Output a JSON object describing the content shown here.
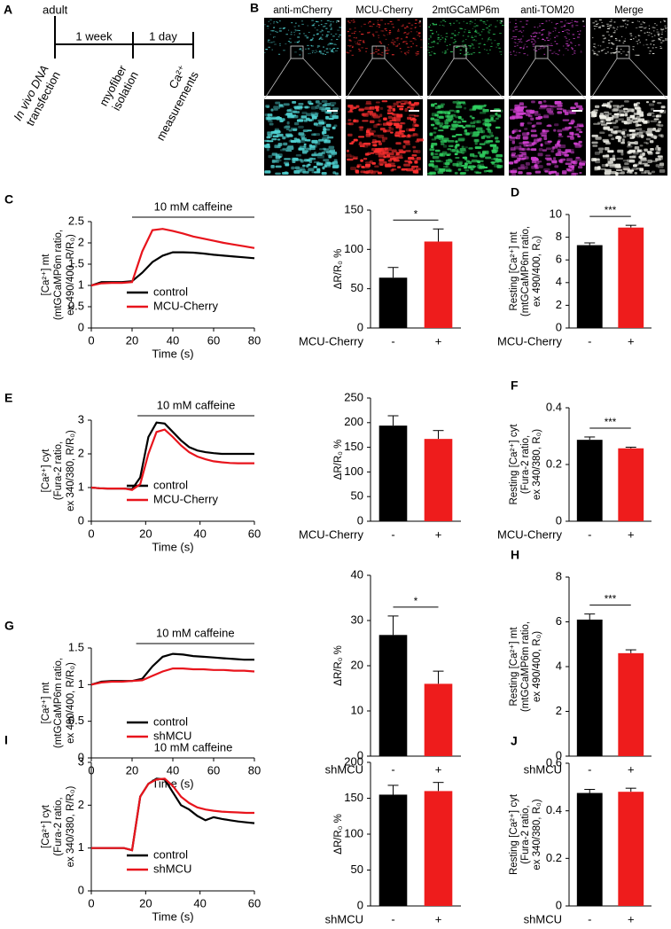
{
  "timeline": {
    "label": "A",
    "top_label": "adult",
    "segments": [
      "1 week",
      "1 day"
    ],
    "events": [
      [
        "In vivo DNA",
        "transfection"
      ],
      [
        "myofiber",
        "isolation"
      ],
      [
        "Ca²⁺",
        "measurements"
      ]
    ]
  },
  "images": {
    "label": "B",
    "channels": [
      "anti-mCherry",
      "MCU-Cherry",
      "2mtGCaMP6m",
      "anti-TOM20",
      "Merge"
    ],
    "colors": [
      "#4fd0d0",
      "#ff3030",
      "#30d060",
      "#d040d0",
      "#f0f0e8"
    ]
  },
  "chart_data": [
    {
      "type": "line",
      "label": "C",
      "annotation": {
        "text": "10 mM caffeine",
        "x": [
          20,
          80
        ]
      },
      "ylabel": [
        "[Ca²⁺] mt",
        "(mtGCaMP6m ratio,",
        "ex 490/400, R/R₀)"
      ],
      "xlabel": "Time (s)",
      "x": [
        0,
        5,
        10,
        15,
        20,
        25,
        30,
        35,
        40,
        45,
        50,
        55,
        60,
        65,
        70,
        75,
        80
      ],
      "series": [
        {
          "name": "control",
          "color": "#000000",
          "values": [
            1.0,
            1.08,
            1.08,
            1.08,
            1.1,
            1.3,
            1.55,
            1.7,
            1.78,
            1.78,
            1.77,
            1.75,
            1.72,
            1.7,
            1.68,
            1.66,
            1.64
          ]
        },
        {
          "name": "MCU-Cherry",
          "color": "#e8141c",
          "values": [
            1.0,
            1.05,
            1.06,
            1.06,
            1.08,
            1.8,
            2.3,
            2.33,
            2.28,
            2.22,
            2.15,
            2.1,
            2.05,
            2.0,
            1.96,
            1.92,
            1.88
          ]
        }
      ],
      "xlim": [
        0,
        80
      ],
      "xticks": [
        0,
        20,
        40,
        60,
        80
      ],
      "ylim": [
        0,
        2.5
      ],
      "yticks": [
        0,
        0.5,
        1,
        1.5,
        2,
        2.5
      ]
    },
    {
      "type": "bar",
      "ylabel": [
        "ΔR/R₀ %"
      ],
      "xlabel": "MCU-Cherry",
      "categories": [
        "-",
        "+"
      ],
      "values": [
        64,
        110
      ],
      "errors": [
        13,
        16
      ],
      "colors": [
        "#000000",
        "#ee1c1c"
      ],
      "significance": "*",
      "ylim": [
        0,
        150
      ],
      "yticks": [
        0,
        50,
        100,
        150
      ]
    },
    {
      "type": "bar",
      "label": "D",
      "ylabel": [
        "Resting [Ca²⁺] mt",
        "(mtGCaMP6m ratio,",
        "ex 490/400, R₀)"
      ],
      "xlabel": "MCU-Cherry",
      "categories": [
        "-",
        "+"
      ],
      "values": [
        7.3,
        8.85
      ],
      "errors": [
        0.2,
        0.2
      ],
      "colors": [
        "#000000",
        "#ee1c1c"
      ],
      "significance": "***",
      "ylim": [
        0,
        10
      ],
      "yticks": [
        0,
        2,
        4,
        6,
        8,
        10
      ]
    },
    {
      "type": "line",
      "label": "E",
      "annotation": {
        "text": "10 mM caffeine",
        "x": [
          17,
          60
        ]
      },
      "ylabel": [
        "[Ca²⁺] cyt",
        "(Fura-2 ratio,",
        "ex 340/380, R/R₀)"
      ],
      "xlabel": "Time (s)",
      "x": [
        0,
        3,
        6,
        9,
        12,
        15,
        18,
        21,
        24,
        27,
        30,
        33,
        36,
        39,
        42,
        45,
        48,
        51,
        54,
        57,
        60
      ],
      "series": [
        {
          "name": "control",
          "color": "#000000",
          "values": [
            1,
            0.98,
            0.97,
            0.97,
            0.97,
            0.95,
            1.3,
            2.5,
            2.93,
            2.9,
            2.65,
            2.4,
            2.2,
            2.1,
            2.05,
            2.02,
            2.0,
            2.0,
            2.0,
            2.0,
            2.0
          ]
        },
        {
          "name": "MCU-Cherry",
          "color": "#e8141c",
          "values": [
            1,
            0.98,
            0.97,
            0.97,
            0.97,
            0.93,
            1.1,
            2.0,
            2.65,
            2.72,
            2.5,
            2.25,
            2.05,
            1.92,
            1.84,
            1.78,
            1.75,
            1.73,
            1.72,
            1.72,
            1.72
          ]
        }
      ],
      "xlim": [
        0,
        60
      ],
      "xticks": [
        0,
        20,
        40,
        60
      ],
      "ylim": [
        0,
        3
      ],
      "yticks": [
        0,
        1,
        2,
        3
      ]
    },
    {
      "type": "bar",
      "ylabel": [
        "ΔR/R₀ %"
      ],
      "xlabel": "MCU-Cherry",
      "categories": [
        "-",
        "+"
      ],
      "values": [
        194,
        167
      ],
      "errors": [
        20,
        17
      ],
      "colors": [
        "#000000",
        "#ee1c1c"
      ],
      "ylim": [
        0,
        250
      ],
      "yticks": [
        0,
        50,
        100,
        150,
        200,
        250
      ]
    },
    {
      "type": "bar",
      "label": "F",
      "ylabel": [
        "Resting  [Ca²⁺] cyt",
        "(Fura-2 ratio,",
        "ex 340/380, R₀)"
      ],
      "xlabel": "MCU-Cherry",
      "categories": [
        "-",
        "+"
      ],
      "values": [
        0.287,
        0.257
      ],
      "errors": [
        0.01,
        0.004
      ],
      "colors": [
        "#000000",
        "#ee1c1c"
      ],
      "significance": "***",
      "ylim": [
        0,
        0.4
      ],
      "yticks": [
        0,
        0.2,
        0.4
      ]
    },
    {
      "type": "line",
      "label": "G",
      "annotation": {
        "text": "10 mM caffeine",
        "x": [
          22,
          80
        ]
      },
      "ylabel": [
        "[Ca²⁺] mt",
        "(mtGCaMP6m ratio,",
        "ex 490/400, R/R₀)"
      ],
      "xlabel": "Time (s)",
      "x": [
        0,
        5,
        10,
        15,
        20,
        25,
        30,
        35,
        40,
        45,
        50,
        55,
        60,
        65,
        70,
        75,
        80
      ],
      "series": [
        {
          "name": "control",
          "color": "#000000",
          "values": [
            1.0,
            1.04,
            1.05,
            1.05,
            1.05,
            1.08,
            1.25,
            1.38,
            1.42,
            1.41,
            1.39,
            1.38,
            1.37,
            1.36,
            1.35,
            1.34,
            1.34
          ]
        },
        {
          "name": "shMCU",
          "color": "#e8141c",
          "values": [
            1.0,
            1.03,
            1.04,
            1.04,
            1.05,
            1.06,
            1.12,
            1.18,
            1.22,
            1.22,
            1.21,
            1.21,
            1.2,
            1.2,
            1.19,
            1.19,
            1.18
          ]
        }
      ],
      "xlim": [
        0,
        80
      ],
      "xticks": [
        0,
        20,
        40,
        60,
        80
      ],
      "ylim": [
        0,
        1.5
      ],
      "yticks": [
        0,
        0.5,
        1,
        1.5
      ]
    },
    {
      "type": "bar",
      "ylabel": [
        "ΔR/R₀ %"
      ],
      "xlabel": "shMCU",
      "categories": [
        "-",
        "+"
      ],
      "values": [
        26.8,
        16
      ],
      "errors": [
        4.2,
        2.8
      ],
      "colors": [
        "#000000",
        "#ee1c1c"
      ],
      "significance": "*",
      "ylim": [
        0,
        40
      ],
      "yticks": [
        0,
        10,
        20,
        30,
        40
      ]
    },
    {
      "type": "bar",
      "label": "H",
      "ylabel": [
        "Resting [Ca²⁺] mt",
        "(mtGCaMP6m ratio,",
        "ex 490/400, R₀)"
      ],
      "xlabel": "shMCU",
      "categories": [
        "-",
        "+"
      ],
      "values": [
        6.1,
        4.6
      ],
      "errors": [
        0.25,
        0.15
      ],
      "colors": [
        "#000000",
        "#ee1c1c"
      ],
      "significance": "***",
      "ylim": [
        0,
        8
      ],
      "yticks": [
        0,
        2,
        4,
        6,
        8
      ]
    },
    {
      "type": "line",
      "label": "I",
      "annotation": {
        "text": "10 mM caffeine",
        "x": [
          15,
          60
        ]
      },
      "ylabel": [
        "[Ca²⁺] cyt",
        "(Fura-2 ratio,",
        "ex 340/380, R/R₀)"
      ],
      "xlabel": "Time (s)",
      "x": [
        0,
        3,
        6,
        9,
        12,
        15,
        18,
        21,
        24,
        27,
        30,
        33,
        36,
        39,
        42,
        45,
        48,
        51,
        54,
        57,
        60
      ],
      "series": [
        {
          "name": "control",
          "color": "#000000",
          "values": [
            1,
            1,
            1,
            1,
            1,
            0.95,
            2.2,
            2.5,
            2.62,
            2.6,
            2.3,
            2.0,
            1.9,
            1.75,
            1.65,
            1.72,
            1.68,
            1.65,
            1.62,
            1.6,
            1.58
          ]
        },
        {
          "name": "shMCU",
          "color": "#e8141c",
          "values": [
            1,
            1,
            1,
            1,
            1,
            0.95,
            2.2,
            2.5,
            2.6,
            2.62,
            2.45,
            2.2,
            2.05,
            1.95,
            1.9,
            1.87,
            1.85,
            1.84,
            1.83,
            1.82,
            1.82
          ]
        }
      ],
      "xlim": [
        0,
        60
      ],
      "xticks": [
        0,
        20,
        40,
        60
      ],
      "ylim": [
        0,
        3
      ],
      "yticks": [
        0,
        1,
        2,
        3
      ]
    },
    {
      "type": "bar",
      "ylabel": [
        "ΔR/R₀ %"
      ],
      "xlabel": "shMCU",
      "categories": [
        "-",
        "+"
      ],
      "values": [
        155,
        160
      ],
      "errors": [
        13,
        12
      ],
      "colors": [
        "#000000",
        "#ee1c1c"
      ],
      "ylim": [
        0,
        200
      ],
      "yticks": [
        0,
        50,
        100,
        150,
        200
      ]
    },
    {
      "type": "bar",
      "label": "J",
      "ylabel": [
        "Resting  [Ca²⁺] cyt",
        "(Fura-2 ratio,",
        "ex 340/380, R₀)"
      ],
      "xlabel": "shMCU",
      "categories": [
        "-",
        "+"
      ],
      "values": [
        0.475,
        0.48
      ],
      "errors": [
        0.015,
        0.015
      ],
      "colors": [
        "#000000",
        "#ee1c1c"
      ],
      "ylim": [
        0,
        0.6
      ],
      "yticks": [
        0,
        0.2,
        0.4,
        0.6
      ]
    }
  ]
}
